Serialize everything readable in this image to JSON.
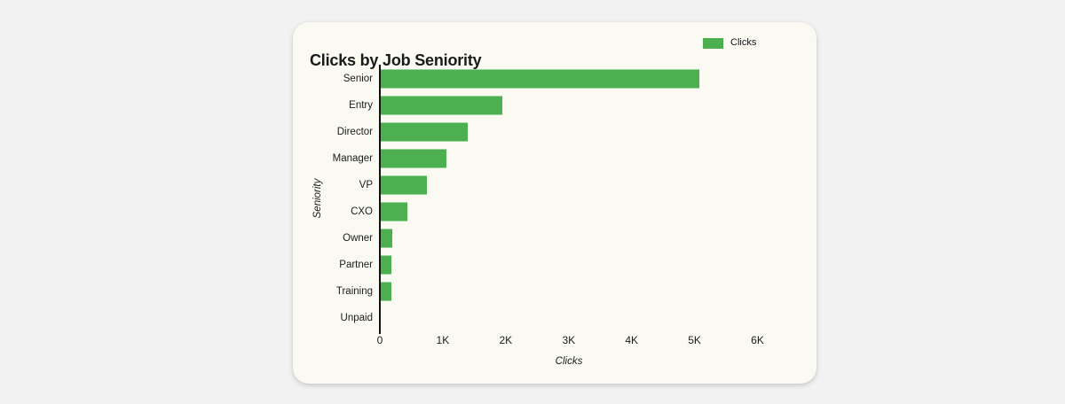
{
  "page": {
    "background_color": "#f2f2f2",
    "card_background_color": "#faf9f2"
  },
  "card": {
    "title": "Clicks by Job Seniority"
  },
  "chart_data": {
    "type": "bar",
    "orientation": "horizontal",
    "title": "Clicks by Job Seniority",
    "xlabel": "Clicks",
    "ylabel": "Seniority",
    "categories": [
      "Senior",
      "Entry",
      "Director",
      "Manager",
      "VP",
      "CXO",
      "Owner",
      "Partner",
      "Training",
      "Unpaid"
    ],
    "values": [
      5070,
      1940,
      1400,
      1050,
      750,
      430,
      200,
      180,
      185,
      0
    ],
    "xlim": [
      0,
      6500
    ],
    "xticks": {
      "values": [
        0,
        1000,
        2000,
        3000,
        4000,
        5000,
        6000
      ],
      "labels": [
        "0",
        "1K",
        "2K",
        "3K",
        "4K",
        "5K",
        "6K"
      ]
    },
    "bar_color": "#4caf50",
    "grid": false,
    "legend_position": "top-right",
    "legend": [
      {
        "name": "Clicks",
        "color": "#4caf50"
      }
    ]
  }
}
